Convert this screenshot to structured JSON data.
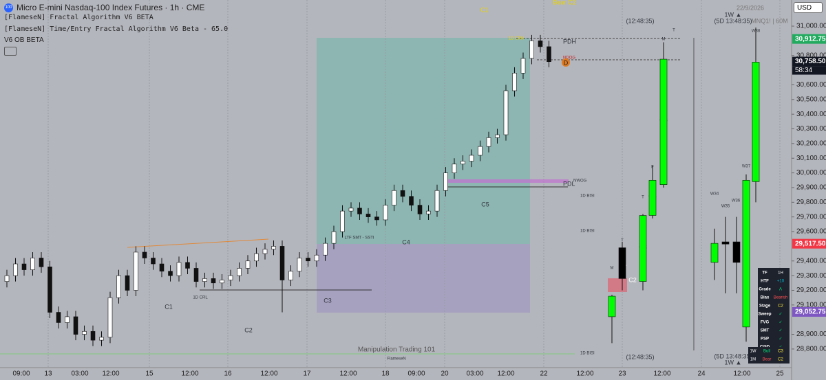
{
  "header": {
    "logo": "100",
    "symbol_title": "Micro E-mini Nasdaq-100 Index Futures · 1h · CME",
    "indicators": [
      "[FlameseN] Fractal Algorithm V6 BETA",
      "[FlameseN] Time/Entry Fractal Algorithm V6 Beta - 65.0",
      "V6 OB BETA"
    ],
    "currency": "USD"
  },
  "chart_data": {
    "type": "candlestick",
    "up_color": "#ffffff",
    "down_color": "#111111",
    "open": [
      29260,
      29300,
      29380,
      29340,
      29420,
      29360,
      29050,
      28980,
      29020,
      28900,
      28920,
      28860,
      28880,
      29150,
      29300,
      29200,
      29460,
      29420,
      29380,
      29330,
      29300,
      29390,
      29350,
      29260,
      29280,
      29250,
      29270,
      29300,
      29350,
      29400,
      29450,
      29480,
      29500,
      29270,
      29330,
      29420,
      29400,
      29440,
      29520,
      29600,
      29740,
      29760,
      29720,
      29700,
      29680,
      29780,
      29880,
      29840,
      29780,
      29720,
      29740,
      29880,
      30000,
      30060,
      30080,
      30120,
      30180,
      30240,
      30260,
      30560,
      30680,
      30780,
      30900,
      30860
    ],
    "high": [
      29340,
      29420,
      29420,
      29460,
      29460,
      29400,
      29090,
      29060,
      29060,
      28960,
      28960,
      28920,
      29190,
      29340,
      29340,
      29500,
      29500,
      29460,
      29420,
      29370,
      29430,
      29430,
      29390,
      29320,
      29320,
      29310,
      29340,
      29390,
      29440,
      29490,
      29520,
      29540,
      29540,
      29370,
      29460,
      29460,
      29480,
      29560,
      29640,
      29780,
      29800,
      29800,
      29760,
      29740,
      29820,
      29920,
      29920,
      29880,
      29820,
      29780,
      29920,
      30040,
      30100,
      30120,
      30160,
      30220,
      30280,
      30300,
      30600,
      30720,
      30820,
      30940,
      30940,
      30900
    ],
    "low": [
      29220,
      29260,
      29300,
      29300,
      29320,
      29010,
      28940,
      28940,
      28860,
      28860,
      28820,
      28820,
      28840,
      29110,
      29160,
      29160,
      29380,
      29340,
      29290,
      29260,
      29260,
      29310,
      29220,
      29220,
      29210,
      29210,
      29230,
      29260,
      29310,
      29360,
      29410,
      29440,
      29050,
      29230,
      29290,
      29360,
      29360,
      29400,
      29480,
      29560,
      29700,
      29680,
      29660,
      29640,
      29640,
      29740,
      29800,
      29740,
      29680,
      29680,
      29700,
      29840,
      29960,
      30020,
      30040,
      30080,
      30140,
      30200,
      30220,
      30520,
      30640,
      30740,
      30820,
      30720
    ],
    "close": [
      29300,
      29380,
      29340,
      29420,
      29360,
      29050,
      28980,
      29020,
      28900,
      28920,
      28860,
      28880,
      29150,
      29300,
      29200,
      29460,
      29420,
      29380,
      29330,
      29300,
      29390,
      29350,
      29260,
      29280,
      29250,
      29270,
      29300,
      29350,
      29400,
      29450,
      29480,
      29500,
      29270,
      29330,
      29420,
      29400,
      29440,
      29520,
      29600,
      29740,
      29760,
      29720,
      29700,
      29680,
      29780,
      29880,
      29840,
      29780,
      29720,
      29740,
      29880,
      30000,
      30060,
      30080,
      30120,
      30180,
      30240,
      30260,
      30560,
      30680,
      30780,
      30900,
      30860,
      30758
    ],
    "htf": [
      {
        "up_color": "#00ff00",
        "down_color": "#000000",
        "open": [
          29020,
          29490,
          29260,
          29710,
          29920
        ],
        "high": [
          29170,
          29530,
          29720,
          30050,
          30890
        ],
        "low": [
          28840,
          29200,
          29200,
          29690,
          29900
        ],
        "close": [
          29160,
          29280,
          29710,
          29950,
          30775
        ]
      },
      {
        "up_color": "#00ff00",
        "down_color": "#000000",
        "open": [
          29390,
          29530,
          29530,
          28950,
          29940
        ],
        "high": [
          29620,
          29700,
          29700,
          29990,
          30990
        ],
        "low": [
          29270,
          29180,
          29180,
          28850,
          29800
        ],
        "close": [
          29520,
          29515,
          29390,
          29950,
          30755
        ]
      }
    ],
    "ylim": [
      28720,
      31178
    ],
    "yticks": [
      {
        "value": 31000,
        "label": "31,000.00"
      },
      {
        "value": 30800,
        "label": "30,800.00"
      },
      {
        "value": 30600,
        "label": "30,600.00"
      },
      {
        "value": 30500,
        "label": "30,500.00"
      },
      {
        "value": 30400,
        "label": "30,400.00"
      },
      {
        "value": 30300,
        "label": "30,300.00"
      },
      {
        "value": 30200,
        "label": "30,200.00"
      },
      {
        "value": 30100,
        "label": "30,100.00"
      },
      {
        "value": 30000,
        "label": "30,000.00"
      },
      {
        "value": 29900,
        "label": "29,900.00"
      },
      {
        "value": 29800,
        "label": "29,800.00"
      },
      {
        "value": 29700,
        "label": "29,700.00"
      },
      {
        "value": 29600,
        "label": "29,600.00"
      },
      {
        "value": 29400,
        "label": "29,400.00"
      },
      {
        "value": 29300,
        "label": "29,300.00"
      },
      {
        "value": 29200,
        "label": "29,200.00"
      },
      {
        "value": 29100,
        "label": "29,100.00"
      },
      {
        "value": 28900,
        "label": "28,900.00"
      },
      {
        "value": 28800,
        "label": "28,800.00"
      }
    ],
    "price_labels": [
      {
        "value": 30912.75,
        "label": "30,912.75",
        "color": "#22ab5f"
      },
      {
        "value": 30758.5,
        "label": "30,758.50",
        "color": "#131722"
      },
      {
        "value": 29517.5,
        "label": "29,517.50",
        "color": "#f23645"
      },
      {
        "value": 29052.75,
        "label": "29,052.75",
        "color": "#7e57c2"
      }
    ],
    "x_labels": [
      "09:00",
      "13",
      "03:00",
      "12:00",
      "15",
      "12:00",
      "16",
      "12:00",
      "17",
      "12:00",
      "18",
      "09:00",
      "20",
      "03:00",
      "12:00",
      "22",
      "12:00",
      "23",
      "12:00",
      "24",
      "12:00",
      "25"
    ]
  },
  "annotations": {
    "c1_top": "C1",
    "bear_c2": "Bear C2",
    "crh": "1D CRH",
    "pdh": "PDH",
    "ndog": "NDOG",
    "d": "D",
    "nwog": "NWOG",
    "pdl": "PDL",
    "c5": "C5",
    "c4": "C4",
    "c3": "C3",
    "c2": "C2",
    "c1": "C1",
    "crl": "1D CRL",
    "bisi1": "1D BISI",
    "bisi2": "1D BISI",
    "bisi3": "1D BISI",
    "manip": "Manipulation Trading 101",
    "flamesen": "FlameseN",
    "smt": "LTF SMT - SSTI",
    "date": "22/9/2026",
    "w_up": "1W ▲",
    "timer5d": "(5D 13:48:35)",
    "symbol": "MNQ1! | 60M",
    "timer": "(12:48:35)",
    "timer_b": "(12:48:35)",
    "timer5d_b": "(5D 13:48:35)",
    "w_up_b": "1W ▲",
    "countdown": "58:34",
    "w34": "W34",
    "w35": "W35",
    "w36": "W36",
    "w37": "W37",
    "w38": "W38",
    "m1": "M",
    "t1": "T",
    "t2": "T",
    "f1": "F",
    "m2": "M",
    "t3": "T",
    "hc1": "C1",
    "hc2": "C2",
    "hc3": "C3",
    "hc4": "C4",
    "hc5": "C5"
  },
  "table": {
    "rows": [
      [
        "TF",
        "1H"
      ],
      [
        "HTF",
        "+10"
      ],
      [
        "Grade",
        "A"
      ],
      [
        "Bias",
        "Bearish"
      ],
      [
        "Stage",
        "C2"
      ],
      [
        "Sweep",
        "✓"
      ],
      [
        "FVG",
        "✓"
      ],
      [
        "SMT",
        "✓"
      ],
      [
        "PSP",
        "✓"
      ],
      [
        "CISD",
        "✓"
      ]
    ],
    "summary": [
      [
        "1W",
        "Bull",
        "C3"
      ],
      [
        "1M",
        "Bear",
        "C2"
      ]
    ]
  }
}
